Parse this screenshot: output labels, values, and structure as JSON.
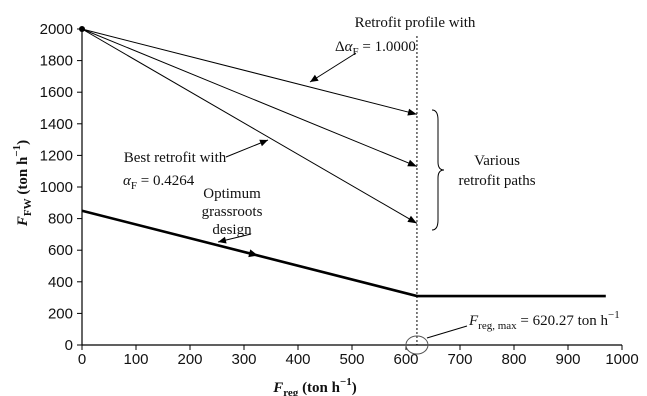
{
  "chart_data": {
    "type": "line",
    "xlabel": {
      "main": "F",
      "sub": "reg",
      "units": " (ton h",
      "sup": "−1",
      "close": ")"
    },
    "ylabel": {
      "main": "F",
      "sub": "FW",
      "units": " (ton h",
      "sup": "−1",
      "close": ")"
    },
    "xlim": [
      0,
      1000
    ],
    "ylim": [
      0,
      2000
    ],
    "xticks": [
      0,
      100,
      200,
      300,
      400,
      500,
      600,
      700,
      800,
      900,
      1000
    ],
    "yticks": [
      0,
      200,
      400,
      600,
      800,
      1000,
      1200,
      1400,
      1600,
      1800,
      2000
    ],
    "grid": false,
    "series": [
      {
        "points": [
          [
            0,
            2000
          ],
          [
            620.27,
            1460
          ]
        ]
      },
      {
        "points": [
          [
            0,
            2000
          ],
          [
            620.27,
            1130
          ]
        ]
      },
      {
        "points": [
          [
            0,
            2000
          ],
          [
            620.27,
            770
          ]
        ]
      },
      {
        "points": [
          [
            0,
            850
          ],
          [
            620.27,
            310
          ],
          [
            970,
            310
          ]
        ]
      }
    ],
    "vertical_line_x": 620.27,
    "annotations": {
      "retrofit_profile_line1": "Retrofit profile with",
      "retrofit_profile_delta": "Δ",
      "retrofit_profile_alpha": "α",
      "retrofit_profile_sub": "F",
      "retrofit_profile_value": " = 1.0000",
      "best_line1": "Best retrofit with",
      "best_alpha": "α",
      "best_sub": "F",
      "best_value": " = 0.4264",
      "various_line1": "Various",
      "various_line2": "retrofit paths",
      "optimum_line1": "Optimum",
      "optimum_line2": "grassroots",
      "optimum_line3": "design",
      "freg_main": "F",
      "freg_sub": "reg, max",
      "freg_value": " = 620.27 ton h",
      "freg_sup": "−1"
    }
  }
}
